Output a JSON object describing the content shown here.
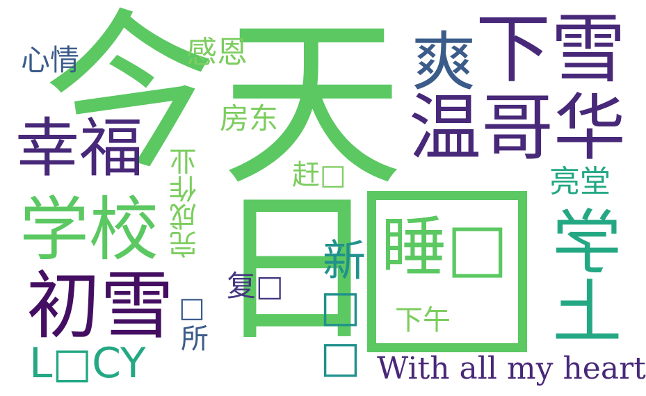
{
  "colors": {
    "green": "#5bc862",
    "green_light": "#7ccd5f",
    "teal": "#24a884",
    "teal_dark": "#21918c",
    "blue": "#3b5c8a",
    "purple": "#482878",
    "purple_dark": "#440f62",
    "violet": "#453781"
  },
  "words": {
    "jin": "今",
    "tian": "天",
    "ri": "日",
    "box_big": "□",
    "xiaxue": "下雪",
    "shuang": "爽",
    "wengehua": "温哥华",
    "xingfu": "幸福",
    "xuexiao": "学校",
    "chuxue": "初雪",
    "lucy": "L□CY",
    "with_heart": "With all my heart",
    "shui": "睡□",
    "xueshang": "学上",
    "xin": "新□□",
    "ganen": "感恩",
    "xinqing": "心情",
    "fangdong": "房东",
    "gan": "赶□",
    "liangtang": "亮堂",
    "wanchengzuoye": "完成作业",
    "suo": "□所",
    "fu": "复□",
    "xiawu": "下午"
  }
}
